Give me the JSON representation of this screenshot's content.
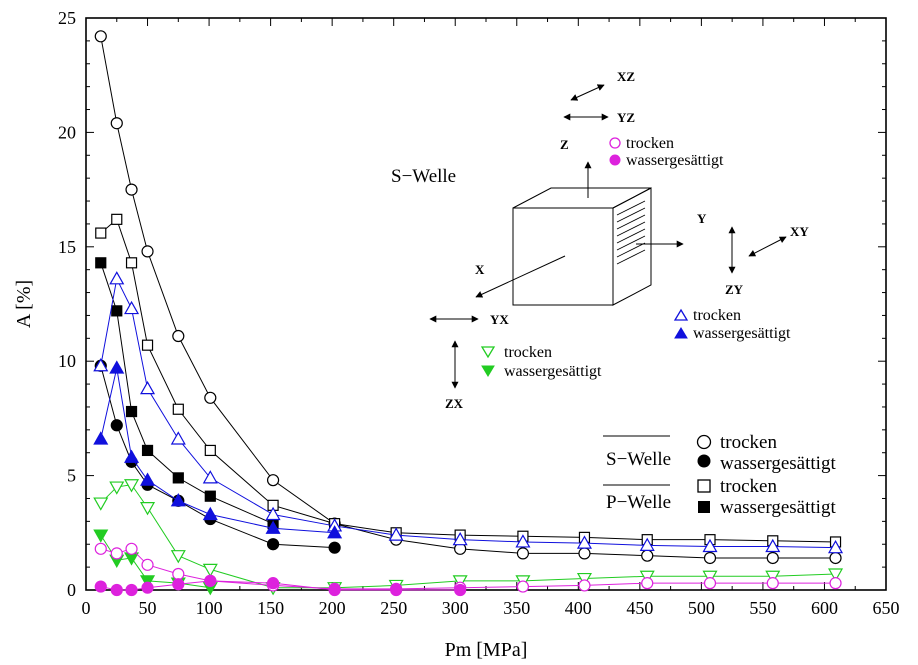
{
  "chart_data": {
    "type": "line",
    "xlabel": "Pm [MPa]",
    "ylabel": "A [%]",
    "xlim": [
      0,
      650
    ],
    "ylim": [
      0,
      25
    ],
    "xticks": [
      0,
      50,
      100,
      150,
      200,
      250,
      300,
      350,
      400,
      450,
      500,
      550,
      600,
      650
    ],
    "yticks": [
      0,
      5,
      10,
      15,
      20,
      25
    ],
    "series": [
      {
        "group": "S-Welle",
        "state": "trocken",
        "marker": "circle-open",
        "color": "#000000",
        "x": [
          12,
          25,
          37,
          50,
          75,
          101,
          152,
          202,
          252,
          304,
          355,
          405,
          456,
          507,
          558,
          609
        ],
        "y": [
          24.2,
          20.4,
          17.5,
          14.8,
          11.1,
          8.4,
          4.8,
          2.9,
          2.2,
          1.8,
          1.6,
          1.6,
          1.5,
          1.4,
          1.4,
          1.4
        ]
      },
      {
        "group": "S-Welle",
        "state": "wassergesättigt",
        "marker": "circle-filled",
        "color": "#000000",
        "x": [
          12,
          25,
          37,
          50,
          75,
          101,
          152,
          202
        ],
        "y": [
          9.8,
          7.2,
          5.6,
          4.6,
          3.9,
          3.1,
          2.0,
          1.85
        ]
      },
      {
        "group": "P-Welle",
        "state": "trocken",
        "marker": "square-open",
        "color": "#000000",
        "x": [
          12,
          25,
          37,
          50,
          75,
          101,
          152,
          202,
          252,
          304,
          355,
          405,
          456,
          507,
          558,
          609
        ],
        "y": [
          15.6,
          16.2,
          14.3,
          10.7,
          7.9,
          6.1,
          3.7,
          2.9,
          2.5,
          2.4,
          2.35,
          2.3,
          2.2,
          2.2,
          2.15,
          2.1
        ]
      },
      {
        "group": "P-Welle",
        "state": "wassergesättigt",
        "marker": "square-filled",
        "color": "#000000",
        "x": [
          12,
          25,
          37,
          50,
          75,
          101,
          152
        ],
        "y": [
          14.3,
          12.2,
          7.8,
          6.1,
          4.9,
          4.1,
          2.9
        ]
      },
      {
        "group": "S-Welle X/Y",
        "state": "trocken",
        "marker": "triangle-up-open",
        "color": "#1010dd",
        "x": [
          12,
          25,
          37,
          50,
          75,
          101,
          152,
          202,
          252,
          304,
          355,
          405,
          456,
          507,
          558,
          609
        ],
        "y": [
          9.8,
          13.6,
          12.3,
          8.8,
          6.6,
          4.9,
          3.3,
          2.8,
          2.4,
          2.2,
          2.1,
          2.05,
          1.95,
          1.9,
          1.9,
          1.85
        ]
      },
      {
        "group": "S-Welle X/Y",
        "state": "wassergesättigt",
        "marker": "triangle-up-filled",
        "color": "#1010dd",
        "x": [
          12,
          25,
          37,
          50,
          75,
          101,
          152,
          202
        ],
        "y": [
          6.6,
          9.7,
          5.8,
          4.8,
          3.9,
          3.3,
          2.7,
          2.5
        ]
      },
      {
        "group": "S-Welle Z",
        "state": "trocken",
        "marker": "triangle-down-open",
        "color": "#22cc22",
        "x": [
          12,
          25,
          37,
          50,
          75,
          101,
          152,
          202,
          252,
          304,
          355,
          405,
          456,
          507,
          558,
          609
        ],
        "y": [
          3.8,
          4.5,
          4.6,
          3.6,
          1.5,
          0.9,
          0.1,
          0.1,
          0.2,
          0.4,
          0.4,
          0.5,
          0.6,
          0.6,
          0.6,
          0.7
        ]
      },
      {
        "group": "S-Welle Z",
        "state": "wassergesättigt",
        "marker": "triangle-down-filled",
        "color": "#22cc22",
        "x": [
          12,
          25,
          37,
          50,
          75,
          101
        ],
        "y": [
          2.4,
          1.3,
          1.4,
          0.4,
          0.3,
          0.1
        ]
      },
      {
        "group": "S-Welle XZ/YZ",
        "state": "trocken",
        "marker": "circle-open",
        "color": "#dd22dd",
        "x": [
          12,
          25,
          37,
          50,
          75,
          101,
          152,
          202,
          252,
          304,
          355,
          405,
          456,
          507,
          558,
          609
        ],
        "y": [
          1.8,
          1.6,
          1.8,
          1.1,
          0.7,
          0.4,
          0.2,
          0.05,
          0.05,
          0.1,
          0.15,
          0.2,
          0.3,
          0.3,
          0.3,
          0.3
        ]
      },
      {
        "group": "S-Welle XZ/YZ",
        "state": "wassergesättigt",
        "marker": "circle-filled",
        "color": "#dd22dd",
        "x": [
          12,
          25,
          37,
          50,
          75,
          101,
          152,
          202,
          252,
          304
        ],
        "y": [
          0.15,
          0.0,
          0.0,
          0.1,
          0.25,
          0.4,
          0.3,
          0.0,
          0.0,
          0.0
        ]
      }
    ],
    "legend": {
      "placement": "bottom-right",
      "groups": [
        {
          "label": "S−Welle",
          "entries": [
            {
              "marker": "circle-open",
              "label": "trocken"
            },
            {
              "marker": "circle-filled",
              "label": "wassergesättigt"
            }
          ]
        },
        {
          "label": "P−Welle",
          "entries": [
            {
              "marker": "square-open",
              "label": "trocken"
            },
            {
              "marker": "square-filled",
              "label": "wassergesättigt"
            }
          ]
        }
      ]
    },
    "annotations": {
      "s_welle": "S−Welle",
      "axes": {
        "x": "X",
        "y": "Y",
        "z": "Z"
      },
      "pairs": {
        "xz": "XZ",
        "yz": "YZ",
        "xy": "XY",
        "zy": "ZY",
        "yx": "YX",
        "zx": "ZX"
      },
      "magenta_legend": {
        "dry": "trocken",
        "wet": "wassergesättigt"
      },
      "blue_legend": {
        "dry": "trocken",
        "wet": "wassergesättigt"
      },
      "green_legend": {
        "dry": "trocken",
        "wet": "wassergesättigt"
      }
    }
  }
}
